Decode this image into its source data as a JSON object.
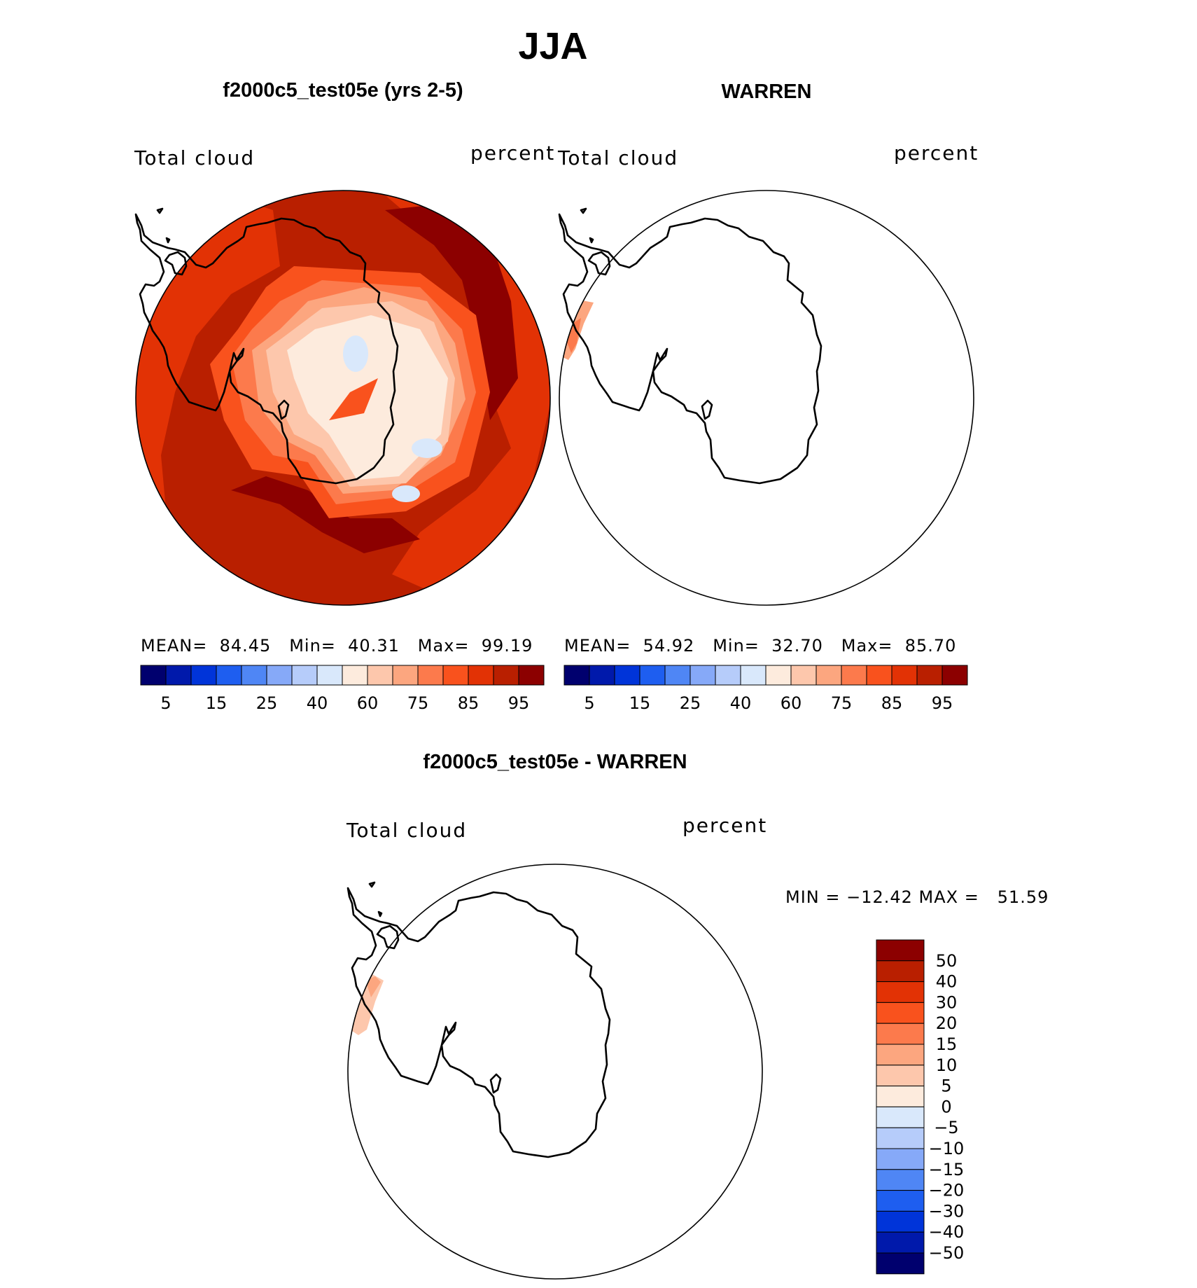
{
  "figure": {
    "season": "JJA",
    "bg": "#ffffff"
  },
  "panels": {
    "model": {
      "title": "f2000c5_test05e (yrs 2-5)",
      "variable": "Total cloud",
      "units": "percent",
      "stats": {
        "mean_label": "MEAN=",
        "mean": "84.45",
        "min_label": "Min=",
        "min": "40.31",
        "max_label": "Max=",
        "max": "99.19"
      }
    },
    "obs": {
      "title": "WARREN",
      "variable": "Total cloud",
      "units": "percent",
      "stats": {
        "mean_label": "MEAN=",
        "mean": "54.92",
        "min_label": "Min=",
        "min": "32.70",
        "max_label": "Max=",
        "max": "85.70"
      }
    },
    "diff": {
      "title": "f2000c5_test05e - WARREN",
      "variable": "Total cloud",
      "units": "percent",
      "stats": {
        "text": "MIN = −12.42 MAX =   51.59"
      }
    }
  },
  "colorbars": {
    "abs": {
      "colors": [
        "#00006e",
        "#0019ab",
        "#0034d9",
        "#1e5ef0",
        "#4f86f5",
        "#86a9f8",
        "#b6ccfa",
        "#d9e8fb",
        "#fdebdd",
        "#fdc7ac",
        "#fca67f",
        "#fc7a4c",
        "#f9521d",
        "#e23205",
        "#b91f00",
        "#8c0000"
      ],
      "ticks": [
        "5",
        "15",
        "25",
        "40",
        "60",
        "75",
        "85",
        "95"
      ]
    },
    "diff": {
      "colors": [
        "#8c0000",
        "#b91f00",
        "#e23205",
        "#f9521d",
        "#fc7a4c",
        "#fca67f",
        "#fdc7ac",
        "#fdebdd",
        "#d9e8fb",
        "#b6ccfa",
        "#86a9f8",
        "#4f86f5",
        "#1e5ef0",
        "#0034d9",
        "#0019ab",
        "#00006e"
      ],
      "ticks": [
        "50",
        "40",
        "30",
        "20",
        "15",
        "10",
        "5",
        "0",
        "−5",
        "−10",
        "−15",
        "−20",
        "−30",
        "−40",
        "−50"
      ]
    }
  }
}
